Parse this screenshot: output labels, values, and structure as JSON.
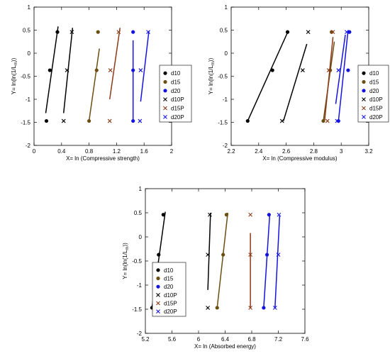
{
  "chart_data": [
    {
      "type": "scatter",
      "xlabel": "X= ln (Compressive strength)",
      "ylabel_main": "Y= ln(ln(1/L",
      "ylabel_sub": "m",
      "ylabel_end": "))",
      "xlim": [
        0,
        2
      ],
      "ylim": [
        -2,
        1
      ],
      "xticks": [
        "0",
        "0.4",
        "0.8",
        "1.2",
        "1.6",
        "2"
      ],
      "xtick_values": [
        0,
        0.4,
        0.8,
        1.2,
        1.6,
        2
      ],
      "yticks": [
        "-2",
        "-1.5",
        "-1",
        "-0.5",
        "0",
        "0.5",
        "1"
      ],
      "ytick_values": [
        -2,
        -1.5,
        -1,
        -0.5,
        0,
        0.5,
        1
      ],
      "legend": "right",
      "series": [
        {
          "name": "d10",
          "marker": "dot",
          "color": "#000000",
          "points": [
            [
              0.18,
              -1.47
            ],
            [
              0.23,
              -0.37
            ],
            [
              0.34,
              0.46
            ]
          ],
          "fit": [
            [
              0.17,
              -1.3
            ],
            [
              0.35,
              0.58
            ]
          ]
        },
        {
          "name": "d15",
          "marker": "dot",
          "color": "#6b4f12",
          "points": [
            [
              0.8,
              -1.47
            ],
            [
              0.91,
              -0.37
            ],
            [
              0.93,
              0.46
            ]
          ],
          "fit": [
            [
              0.8,
              -1.47
            ],
            [
              0.95,
              0.1
            ]
          ]
        },
        {
          "name": "d20",
          "marker": "dot",
          "color": "#1414e0",
          "points": [
            [
              1.44,
              -1.47
            ],
            [
              1.44,
              -0.37
            ],
            [
              1.44,
              0.46
            ]
          ],
          "fit": [
            [
              1.44,
              -1.47
            ],
            [
              1.44,
              0.28
            ]
          ]
        },
        {
          "name": "d10P",
          "marker": "x",
          "color": "#000000",
          "points": [
            [
              0.43,
              -1.47
            ],
            [
              0.48,
              -0.37
            ],
            [
              0.55,
              0.46
            ]
          ],
          "fit": [
            [
              0.43,
              -1.3
            ],
            [
              0.56,
              0.55
            ]
          ]
        },
        {
          "name": "d15P",
          "marker": "x",
          "color": "#8b3a1a",
          "points": [
            [
              1.1,
              -1.47
            ],
            [
              1.11,
              -0.37
            ],
            [
              1.23,
              0.46
            ]
          ],
          "fit": [
            [
              1.1,
              -1.0
            ],
            [
              1.25,
              0.55
            ]
          ]
        },
        {
          "name": "d20P",
          "marker": "x",
          "color": "#1414e0",
          "points": [
            [
              1.54,
              -1.47
            ],
            [
              1.55,
              -0.37
            ],
            [
              1.66,
              0.46
            ]
          ],
          "fit": [
            [
              1.55,
              -1.05
            ],
            [
              1.67,
              0.48
            ]
          ]
        }
      ]
    },
    {
      "type": "scatter",
      "xlabel": "X= ln (Compressive modulus)",
      "ylabel_main": "Y= ln(ln(1/L",
      "ylabel_sub": "m",
      "ylabel_end": "))",
      "xlim": [
        2.2,
        3.2
      ],
      "ylim": [
        -2,
        1
      ],
      "xticks": [
        "2.2",
        "2.4",
        "2.6",
        "2.8",
        "3",
        "3.2"
      ],
      "xtick_values": [
        2.2,
        2.4,
        2.6,
        2.8,
        3.0,
        3.2
      ],
      "yticks": [
        "-2",
        "-1.5",
        "-1",
        "-0.5",
        "0",
        "0.5",
        "1"
      ],
      "ytick_values": [
        -2,
        -1.5,
        -1,
        -0.5,
        0,
        0.5,
        1
      ],
      "legend": "right",
      "series": [
        {
          "name": "d10",
          "marker": "dot",
          "color": "#000000",
          "points": [
            [
              2.32,
              -1.47
            ],
            [
              2.5,
              -0.37
            ],
            [
              2.61,
              0.46
            ]
          ],
          "fit": [
            [
              2.32,
              -1.47
            ],
            [
              2.61,
              0.45
            ]
          ]
        },
        {
          "name": "d15",
          "marker": "dot",
          "color": "#6b4f12",
          "points": [
            [
              2.87,
              -1.47
            ],
            [
              2.92,
              -0.37
            ],
            [
              2.93,
              0.46
            ]
          ],
          "fit": [
            [
              2.87,
              -1.47
            ],
            [
              2.95,
              0.25
            ]
          ]
        },
        {
          "name": "d20",
          "marker": "dot",
          "color": "#1414e0",
          "points": [
            [
              2.98,
              -1.47
            ],
            [
              3.05,
              -0.37
            ],
            [
              3.06,
              0.46
            ]
          ],
          "fit": [
            [
              2.98,
              -1.47
            ],
            [
              3.05,
              0.5
            ]
          ]
        },
        {
          "name": "d10P",
          "marker": "x",
          "color": "#000000",
          "points": [
            [
              2.57,
              -1.47
            ],
            [
              2.72,
              -0.37
            ],
            [
              2.76,
              0.46
            ]
          ],
          "fit": [
            [
              2.58,
              -1.47
            ],
            [
              2.75,
              0.2
            ]
          ]
        },
        {
          "name": "d15P",
          "marker": "x",
          "color": "#8b3a1a",
          "points": [
            [
              2.9,
              -1.47
            ],
            [
              2.91,
              -0.37
            ],
            [
              2.94,
              0.46
            ]
          ],
          "fit": [
            [
              2.88,
              -1.45
            ],
            [
              2.94,
              0.35
            ]
          ]
        },
        {
          "name": "d20P",
          "marker": "x",
          "color": "#1414e0",
          "points": [
            [
              2.97,
              -1.47
            ],
            [
              2.98,
              -0.37
            ],
            [
              3.04,
              0.46
            ]
          ],
          "fit": [
            [
              2.96,
              -1.1
            ],
            [
              3.03,
              0.4
            ]
          ]
        }
      ]
    },
    {
      "type": "scatter",
      "xlabel": "X= ln (Absorbed energy)",
      "ylabel_main": "Y= ln(ln(1/L",
      "ylabel_sub": "m",
      "ylabel_end": "))",
      "xlim": [
        5.2,
        7.6
      ],
      "ylim": [
        -2,
        1
      ],
      "xticks": [
        "5.2",
        "5.6",
        "6",
        "6.4",
        "6.8",
        "7.2",
        "7.6"
      ],
      "xtick_values": [
        5.2,
        5.6,
        6.0,
        6.4,
        6.8,
        7.2,
        7.6
      ],
      "yticks": [
        "-2",
        "-1.5",
        "-1",
        "-0.5",
        "0",
        "0.5",
        "1"
      ],
      "ytick_values": [
        -2,
        -1.5,
        -1,
        -0.5,
        0,
        0.5,
        1
      ],
      "legend": "left",
      "series": [
        {
          "name": "d10",
          "marker": "dot",
          "color": "#000000",
          "points": [
            [
              5.3,
              -1.47
            ],
            [
              5.4,
              -0.37
            ],
            [
              5.47,
              0.46
            ]
          ],
          "fit": [
            [
              5.3,
              -1.47
            ],
            [
              5.5,
              0.52
            ]
          ]
        },
        {
          "name": "d15",
          "marker": "dot",
          "color": "#6b4f12",
          "points": [
            [
              6.28,
              -1.47
            ],
            [
              6.37,
              -0.37
            ],
            [
              6.42,
              0.46
            ]
          ],
          "fit": [
            [
              6.28,
              -1.47
            ],
            [
              6.44,
              0.5
            ]
          ]
        },
        {
          "name": "d20",
          "marker": "dot",
          "color": "#1414e0",
          "points": [
            [
              6.98,
              -1.47
            ],
            [
              7.03,
              -0.37
            ],
            [
              7.06,
              0.46
            ]
          ],
          "fit": [
            [
              6.98,
              -1.47
            ],
            [
              7.07,
              0.45
            ]
          ]
        },
        {
          "name": "d10P",
          "marker": "x",
          "color": "#000000",
          "points": [
            [
              6.14,
              -1.47
            ],
            [
              6.14,
              -0.37
            ],
            [
              6.17,
              0.46
            ]
          ],
          "fit": [
            [
              6.14,
              -1.1
            ],
            [
              6.18,
              0.5
            ]
          ]
        },
        {
          "name": "d15P",
          "marker": "x",
          "color": "#8b3a1a",
          "points": [
            [
              6.78,
              -1.47
            ],
            [
              6.78,
              -0.37
            ],
            [
              6.78,
              0.46
            ]
          ],
          "fit": [
            [
              6.78,
              -1.47
            ],
            [
              6.78,
              0.08
            ]
          ]
        },
        {
          "name": "d20P",
          "marker": "x",
          "color": "#1414e0",
          "points": [
            [
              7.15,
              -1.47
            ],
            [
              7.2,
              -0.37
            ],
            [
              7.21,
              0.46
            ]
          ],
          "fit": [
            [
              7.15,
              -1.47
            ],
            [
              7.22,
              0.45
            ]
          ]
        }
      ]
    }
  ]
}
